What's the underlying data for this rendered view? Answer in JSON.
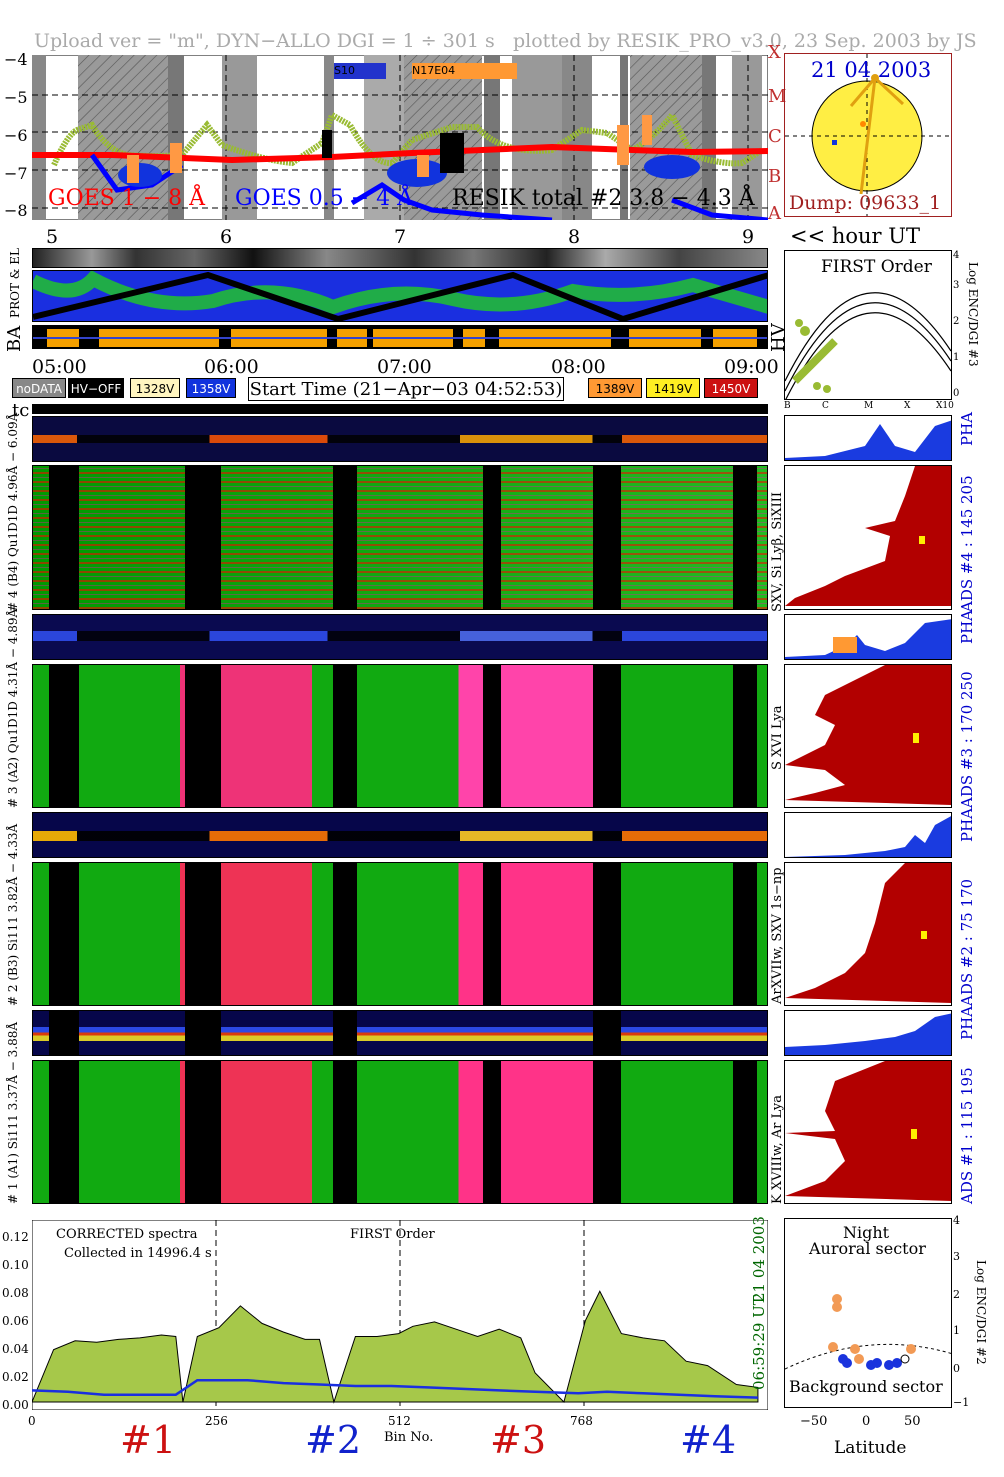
{
  "header": {
    "left": "Upload ver = \"m\", DYN−ALLO DGI =   1 ÷ 301 s",
    "right": "plotted by RESIK_PRO_v3.0, 23 Sep. 2003 by JS"
  },
  "goes_panel": {
    "yticks": [
      "−4",
      "−5",
      "−6",
      "−7",
      "−8"
    ],
    "class_letters": [
      "X",
      "M",
      "C",
      "B",
      "A"
    ],
    "legend_s": "S10",
    "legend_n": "N17E04",
    "goes1": "GOES 1 − 8 Å",
    "goes05": "GOES 0.5 − 4 Å",
    "resik": "RESIK total #2  3.8 − 4.3 Å",
    "colors": {
      "goes1": "#ff0000",
      "goes05": "#0000ff",
      "resik": "#000000"
    }
  },
  "sun": {
    "date": "21 04 2003",
    "dump": "Dump: 09633_1"
  },
  "hour_axis": {
    "ticks": [
      "5",
      "6",
      "7",
      "8",
      "9"
    ],
    "label": "<< hour UT"
  },
  "side_labels": {
    "prot": "PROT & EL",
    "ba": "BA",
    "hv": "HV"
  },
  "time_axis": {
    "ticks": [
      "05:00",
      "06:00",
      "07:00",
      "08:00",
      "09:00"
    ]
  },
  "status_legend": {
    "nodata": "noDATA",
    "hvoff": "HV−OFF",
    "v1328": "1328V",
    "v1358": "1358V",
    "start": "Start Time (21−Apr−03 04:52:53)",
    "v1389": "1389V",
    "v1419": "1419V",
    "v1450": "1450V"
  },
  "first_order": {
    "title": "FIRST Order",
    "ylabel": "Log ENC/DGI #3",
    "yticks": [
      "4",
      "3",
      "2",
      "1",
      "0"
    ],
    "xticks": [
      "B",
      "C",
      "M",
      "X",
      "X10"
    ]
  },
  "tc": "tc",
  "channels": [
    {
      "pha_label": "4.96Å − 6.09Å",
      "label": "# 4 (B4) Qu1D1D 4.96Å − 6.09Å",
      "lines": "SXV, Si Lyβ, SiXIII",
      "ads": "ADS #4 :  145 205",
      "pha": "PHA"
    },
    {
      "pha_label": "4.31Å − 4.89Å",
      "label": "# 3 (A2) Qu1D1D 4.31Å − 4.89Å",
      "lines": "S XVI Lya",
      "ads": "ADS #3 :  170 250",
      "pha": "PHA"
    },
    {
      "pha_label": "3.82Å − 4.33Å",
      "label": "# 2 (B3) Si111  3.82Å − 4.33Å",
      "lines": "ArXVIIw, SXV 1s−np",
      "ads": "ADS #2 :  75 170",
      "pha": "PHA"
    },
    {
      "pha_label": "3.37Å − 3.88Å",
      "label": "# 1 (A1) Si111  3.37Å − 3.88Å",
      "lines": "K XVIIIw, Ar Lya",
      "ads": "ADS #1 :  115 195",
      "pha": "PHA"
    }
  ],
  "spectrum": {
    "note1": "CORRECTED spectra",
    "note2": "Collected in 14996.4 s",
    "note3": "FIRST Order",
    "yticks": [
      "0.12",
      "0.10",
      "0.08",
      "0.06",
      "0.04",
      "0.02",
      "0.00"
    ],
    "xticks": [
      "0",
      "256",
      "512",
      "768"
    ],
    "xlabel": "Bin No.",
    "ut": "06:59:29 UT",
    "date": "21 04 2003",
    "numbers": [
      "#1",
      "#2",
      "#3",
      "#4"
    ]
  },
  "auroral": {
    "night": "Night",
    "auroral": "Auroral sector",
    "background": "Background sector",
    "xlabel": "Latitude",
    "ylabel": "Log ENC/DGI #2",
    "yticks": [
      "4",
      "3",
      "2",
      "1",
      "0",
      "−1"
    ],
    "xticks": [
      "−50",
      "0",
      "50"
    ]
  },
  "chart_data": {
    "type": "line",
    "title": "",
    "xlabel": "Bin No.",
    "ylabel": "",
    "xlim": [
      0,
      1024
    ],
    "ylim": [
      0,
      0.125
    ],
    "series": [
      {
        "name": "CORRECTED spectra",
        "x": [
          0,
          30,
          60,
          90,
          120,
          150,
          180,
          200,
          210,
          230,
          260,
          290,
          320,
          350,
          380,
          400,
          420,
          450,
          480,
          510,
          530,
          560,
          590,
          620,
          650,
          680,
          700,
          740,
          770,
          790,
          820,
          850,
          880,
          910,
          940,
          980,
          1010
        ],
        "values": [
          0.0,
          0.036,
          0.042,
          0.041,
          0.043,
          0.044,
          0.046,
          0.045,
          0.0,
          0.045,
          0.051,
          0.066,
          0.054,
          0.048,
          0.043,
          0.043,
          0.0,
          0.045,
          0.045,
          0.047,
          0.052,
          0.055,
          0.05,
          0.045,
          0.05,
          0.044,
          0.02,
          0.0,
          0.056,
          0.076,
          0.047,
          0.044,
          0.042,
          0.028,
          0.025,
          0.012,
          0.01
        ]
      },
      {
        "name": "",
        "x": [
          0,
          50,
          100,
          150,
          200,
          230,
          300,
          350,
          400,
          450,
          500,
          550,
          600,
          650,
          700,
          760,
          800,
          850,
          900,
          950,
          1010
        ],
        "values": [
          0.008,
          0.007,
          0.005,
          0.005,
          0.005,
          0.015,
          0.015,
          0.013,
          0.012,
          0.011,
          0.011,
          0.01,
          0.009,
          0.008,
          0.007,
          0.006,
          0.007,
          0.006,
          0.005,
          0.004,
          0.003
        ]
      }
    ]
  }
}
